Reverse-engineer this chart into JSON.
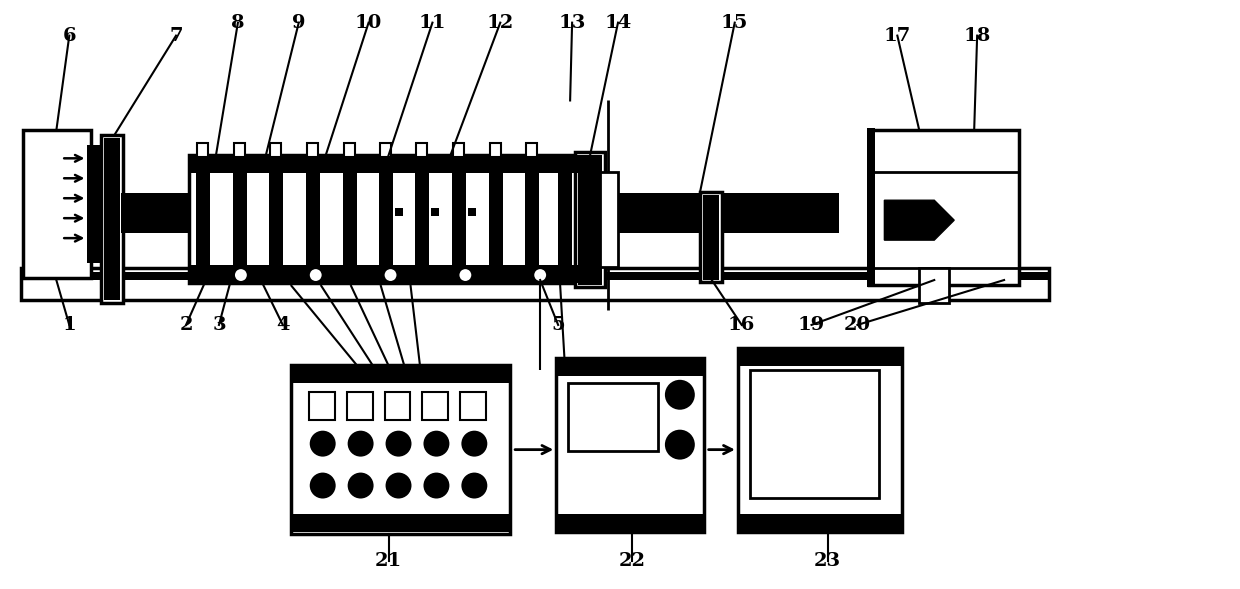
{
  "bg_color": "#ffffff",
  "lw": 2.0,
  "fig_w": 12.4,
  "fig_h": 5.89
}
